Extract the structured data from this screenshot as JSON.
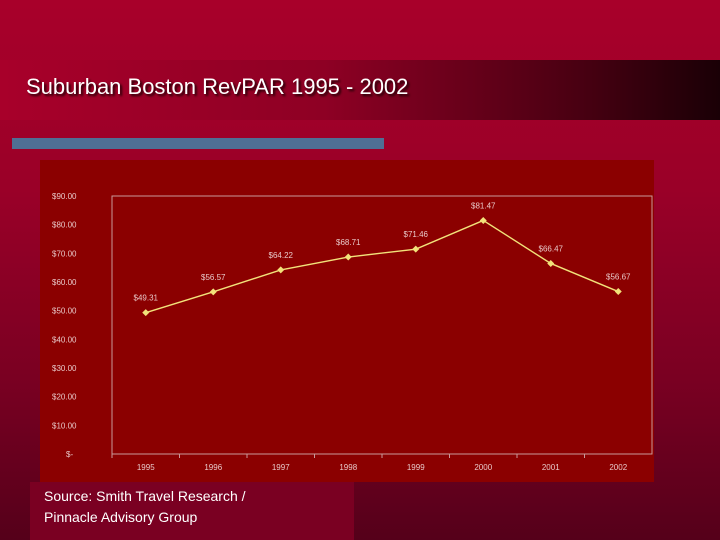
{
  "slide": {
    "title": "Suburban Boston RevPAR 1995 - 2002",
    "source_line1": "Source: Smith Travel Research /",
    "source_line2": "Pinnacle Advisory Group"
  },
  "chart_data": {
    "type": "line",
    "title": "",
    "xlabel": "",
    "ylabel": "",
    "categories": [
      "1995",
      "1996",
      "1997",
      "1998",
      "1999",
      "2000",
      "2001",
      "2002"
    ],
    "series": [
      {
        "values": [
          49.31,
          56.57,
          64.22,
          68.71,
          71.46,
          81.47,
          66.47,
          56.67
        ],
        "data_labels": [
          "$49.31",
          "$56.57",
          "$64.22",
          "$68.71",
          "$71.46",
          "$81.47",
          "$66.47",
          "$56.67"
        ]
      }
    ],
    "ylim": [
      0,
      90
    ],
    "y_ticks": [
      90,
      80,
      70,
      60,
      50,
      40,
      30,
      20,
      10,
      0
    ],
    "y_tick_labels": [
      "$90.00",
      "$80.00",
      "$70.00",
      "$60.00",
      "$50.00",
      "$40.00",
      "$30.00",
      "$20.00",
      "$10.00",
      "$-"
    ],
    "grid": false,
    "legend": "none",
    "colors": {
      "plot_background": "#8b0000",
      "line": "#f2e27a",
      "marker": "#f2e27a",
      "axis": "#c99a9a",
      "text": "#e8c8c8"
    }
  }
}
